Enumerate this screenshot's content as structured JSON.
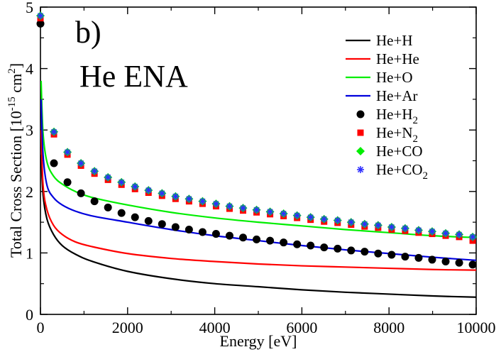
{
  "chart_data": {
    "type": "line+scatter",
    "panel_tag": "b)",
    "panel_title": "He ENA",
    "xlabel": "Energy [eV]",
    "ylabel": {
      "prefix": "Total Cross Section [10",
      "exp1": "-15",
      "mid": " cm",
      "exp2": "2",
      "suffix": "]"
    },
    "xlim": [
      0,
      10000
    ],
    "ylim": [
      0,
      5
    ],
    "xticks": [
      0,
      2000,
      4000,
      6000,
      8000,
      10000
    ],
    "yticks": [
      0,
      1,
      2,
      3,
      4,
      5
    ],
    "legend_position": "top-right",
    "lines": [
      {
        "key": "He+H",
        "label": "He+H",
        "sub": "",
        "color": "#000000",
        "x": [
          15,
          60,
          150,
          300,
          500,
          800,
          1200,
          2000,
          3000,
          4000,
          5000,
          6000,
          7000,
          8000,
          9000,
          10000
        ],
        "y": [
          2.6,
          1.95,
          1.55,
          1.3,
          1.12,
          0.98,
          0.86,
          0.7,
          0.58,
          0.5,
          0.45,
          0.4,
          0.36,
          0.33,
          0.3,
          0.28
        ]
      },
      {
        "key": "He+He",
        "label": "He+He",
        "sub": "",
        "color": "#ff0000",
        "x": [
          15,
          60,
          150,
          300,
          500,
          800,
          1200,
          2000,
          3000,
          4000,
          5000,
          6000,
          7000,
          8000,
          9000,
          10000
        ],
        "y": [
          3.0,
          2.1,
          1.7,
          1.45,
          1.3,
          1.18,
          1.1,
          0.99,
          0.91,
          0.86,
          0.82,
          0.79,
          0.77,
          0.75,
          0.73,
          0.72
        ]
      },
      {
        "key": "He+O",
        "label": "He+O",
        "sub": "",
        "color": "#00ee00",
        "x": [
          15,
          60,
          150,
          300,
          500,
          800,
          1200,
          2000,
          3000,
          4000,
          5000,
          6000,
          7000,
          8000,
          9000,
          10000
        ],
        "y": [
          3.8,
          2.95,
          2.48,
          2.25,
          2.12,
          2.0,
          1.9,
          1.78,
          1.66,
          1.57,
          1.5,
          1.44,
          1.38,
          1.33,
          1.28,
          1.25
        ]
      },
      {
        "key": "He+Ar",
        "label": "He+Ar",
        "sub": "",
        "color": "#0000dd",
        "x": [
          15,
          60,
          150,
          300,
          500,
          800,
          1200,
          2000,
          3000,
          4000,
          5000,
          6000,
          7000,
          8000,
          9000,
          10000
        ],
        "y": [
          3.5,
          2.6,
          2.1,
          1.9,
          1.78,
          1.68,
          1.6,
          1.5,
          1.38,
          1.28,
          1.2,
          1.12,
          1.05,
          0.99,
          0.93,
          0.88
        ]
      }
    ],
    "scatter": [
      {
        "key": "He+H2",
        "label": "He+H",
        "sub": "2",
        "marker": "circle",
        "color": "#000000",
        "x": [
          0,
          310,
          620,
          930,
          1240,
          1550,
          1860,
          2170,
          2480,
          2790,
          3100,
          3410,
          3720,
          4030,
          4340,
          4650,
          4960,
          5270,
          5580,
          5890,
          6200,
          6510,
          6820,
          7130,
          7440,
          7750,
          8060,
          8370,
          8680,
          8990,
          9300,
          9610,
          9920
        ],
        "y": [
          4.73,
          2.46,
          2.15,
          1.97,
          1.84,
          1.74,
          1.65,
          1.58,
          1.52,
          1.47,
          1.42,
          1.38,
          1.34,
          1.31,
          1.28,
          1.25,
          1.22,
          1.2,
          1.17,
          1.14,
          1.12,
          1.09,
          1.07,
          1.04,
          1.02,
          0.99,
          0.97,
          0.94,
          0.92,
          0.89,
          0.86,
          0.84,
          0.81
        ]
      },
      {
        "key": "He+N2",
        "label": "He+N",
        "sub": "2",
        "marker": "square",
        "color": "#ff0000",
        "x": [
          0,
          310,
          620,
          930,
          1240,
          1550,
          1860,
          2170,
          2480,
          2790,
          3100,
          3410,
          3720,
          4030,
          4340,
          4650,
          4960,
          5270,
          5580,
          5890,
          6200,
          6510,
          6820,
          7130,
          7440,
          7750,
          8060,
          8370,
          8680,
          8990,
          9300,
          9610,
          9920
        ],
        "y": [
          4.82,
          2.93,
          2.6,
          2.42,
          2.29,
          2.19,
          2.11,
          2.04,
          1.98,
          1.93,
          1.88,
          1.84,
          1.8,
          1.76,
          1.72,
          1.69,
          1.66,
          1.63,
          1.6,
          1.57,
          1.54,
          1.51,
          1.49,
          1.46,
          1.43,
          1.41,
          1.38,
          1.36,
          1.33,
          1.31,
          1.28,
          1.26,
          1.2
        ]
      },
      {
        "key": "He+CO",
        "label": "He+CO",
        "sub": "",
        "marker": "diamond",
        "color": "#00ee00",
        "x": [
          0,
          310,
          620,
          930,
          1240,
          1550,
          1860,
          2170,
          2480,
          2790,
          3100,
          3410,
          3720,
          4030,
          4340,
          4650,
          4960,
          5270,
          5580,
          5890,
          6200,
          6510,
          6820,
          7130,
          7440,
          7750,
          8060,
          8370,
          8680,
          8990,
          9300,
          9610,
          9920
        ],
        "y": [
          4.86,
          2.97,
          2.64,
          2.46,
          2.33,
          2.23,
          2.15,
          2.08,
          2.02,
          1.97,
          1.92,
          1.88,
          1.84,
          1.8,
          1.76,
          1.73,
          1.7,
          1.67,
          1.64,
          1.61,
          1.58,
          1.55,
          1.53,
          1.5,
          1.47,
          1.45,
          1.42,
          1.4,
          1.37,
          1.35,
          1.32,
          1.3,
          1.26
        ]
      },
      {
        "key": "He+CO2",
        "label": "He+CO",
        "sub": "2",
        "marker": "star",
        "color": "#3030ff",
        "x": [
          0,
          310,
          620,
          930,
          1240,
          1550,
          1860,
          2170,
          2480,
          2790,
          3100,
          3410,
          3720,
          4030,
          4340,
          4650,
          4960,
          5270,
          5580,
          5890,
          6200,
          6510,
          6820,
          7130,
          7440,
          7750,
          8060,
          8370,
          8680,
          8990,
          9300,
          9610,
          9920
        ],
        "y": [
          4.86,
          2.97,
          2.64,
          2.46,
          2.33,
          2.23,
          2.15,
          2.08,
          2.02,
          1.97,
          1.92,
          1.88,
          1.84,
          1.8,
          1.76,
          1.73,
          1.7,
          1.67,
          1.64,
          1.61,
          1.58,
          1.55,
          1.53,
          1.5,
          1.47,
          1.45,
          1.42,
          1.4,
          1.37,
          1.35,
          1.32,
          1.3,
          1.26
        ]
      }
    ]
  }
}
